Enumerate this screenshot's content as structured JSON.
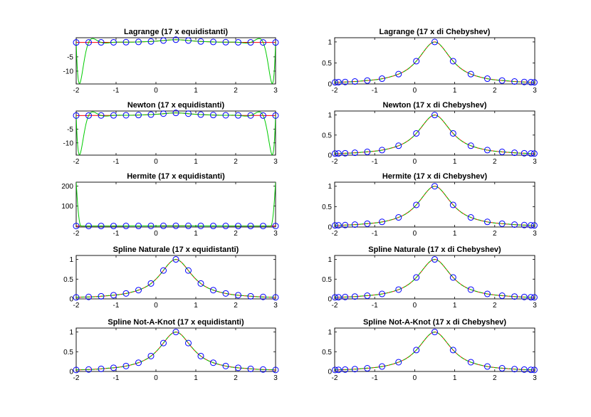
{
  "figure": {
    "background": "#ffffff",
    "colors": {
      "exact": "#ff0000",
      "interpolant": "#00cc00",
      "nodes": "#0000ff",
      "axes": "#000000"
    }
  },
  "chart_data": [
    {
      "type": "line",
      "title": "Lagrange (17 x equidistanti)",
      "xlim": [
        -2,
        3
      ],
      "ylim": [
        -14.5,
        1.7
      ],
      "xticks": [
        -2,
        -1,
        0,
        1,
        2,
        3
      ],
      "xtick_labels": [
        "-2",
        "-1",
        "0",
        "1",
        "2",
        "3"
      ],
      "yticks": [
        -10,
        -5
      ],
      "ytick_labels": [
        "-10",
        "-5"
      ],
      "nodes": "equidistant",
      "interpolant": "runge",
      "grid": false,
      "legend": "none"
    },
    {
      "type": "line",
      "title": "Lagrange (17 x di Chebyshev)",
      "xlim": [
        -2,
        3
      ],
      "ylim": [
        0,
        1.1
      ],
      "xticks": [
        -2,
        -1,
        0,
        1,
        2,
        3
      ],
      "xtick_labels": [
        "-2",
        "-1",
        "0",
        "1",
        "2",
        "3"
      ],
      "yticks": [
        0,
        0.5,
        1
      ],
      "ytick_labels": [
        "0",
        "0.5",
        "1"
      ],
      "nodes": "chebyshev",
      "interpolant": "close",
      "grid": false,
      "legend": "none"
    },
    {
      "type": "line",
      "title": "Newton (17 x equidistanti)",
      "xlim": [
        -2,
        3
      ],
      "ylim": [
        -14.5,
        1.7
      ],
      "xticks": [
        -2,
        -1,
        0,
        1,
        2,
        3
      ],
      "xtick_labels": [
        "-2",
        "-1",
        "0",
        "1",
        "2",
        "3"
      ],
      "yticks": [
        -10,
        -5
      ],
      "ytick_labels": [
        "-10",
        "-5"
      ],
      "nodes": "equidistant",
      "interpolant": "runge",
      "grid": false,
      "legend": "none"
    },
    {
      "type": "line",
      "title": "Newton (17 x di Chebyshev)",
      "xlim": [
        -2,
        3
      ],
      "ylim": [
        0,
        1.1
      ],
      "xticks": [
        -2,
        -1,
        0,
        1,
        2,
        3
      ],
      "xtick_labels": [
        "-2",
        "-1",
        "0",
        "1",
        "2",
        "3"
      ],
      "yticks": [
        0,
        0.5,
        1
      ],
      "ytick_labels": [
        "0",
        "0.5",
        "1"
      ],
      "nodes": "chebyshev",
      "interpolant": "close",
      "grid": false,
      "legend": "none"
    },
    {
      "type": "line",
      "title": "Hermite (17 x equidistanti)",
      "xlim": [
        -2,
        3
      ],
      "ylim": [
        -5,
        220
      ],
      "xticks": [
        -2,
        -1,
        0,
        1,
        2,
        3
      ],
      "xtick_labels": [
        "-2",
        "-1",
        "0",
        "1",
        "2",
        "3"
      ],
      "yticks": [
        100,
        200
      ],
      "ytick_labels": [
        "100",
        "200"
      ],
      "nodes": "equidistant",
      "interpolant": "hermite_spike",
      "grid": false,
      "legend": "none"
    },
    {
      "type": "line",
      "title": "Hermite (17 x di Chebyshev)",
      "xlim": [
        -2,
        3
      ],
      "ylim": [
        0,
        1.1
      ],
      "xticks": [
        -2,
        -1,
        0,
        1,
        2,
        3
      ],
      "xtick_labels": [
        "-2",
        "-1",
        "0",
        "1",
        "2",
        "3"
      ],
      "yticks": [
        0,
        0.5,
        1
      ],
      "ytick_labels": [
        "0",
        "0.5",
        "1"
      ],
      "nodes": "chebyshev",
      "interpolant": "close",
      "grid": false,
      "legend": "none"
    },
    {
      "type": "line",
      "title": "Spline Naturale (17 x equidistanti)",
      "xlim": [
        -2,
        3
      ],
      "ylim": [
        0,
        1.1
      ],
      "xticks": [
        -2,
        -1,
        0,
        1,
        2,
        3
      ],
      "xtick_labels": [
        "-2",
        "-1",
        "0",
        "1",
        "2",
        "3"
      ],
      "yticks": [
        0,
        0.5,
        1
      ],
      "ytick_labels": [
        "0",
        "0.5",
        "1"
      ],
      "nodes": "equidistant",
      "interpolant": "close",
      "grid": false,
      "legend": "none"
    },
    {
      "type": "line",
      "title": "Spline Naturale (17 x di Chebyshev)",
      "xlim": [
        -2,
        3
      ],
      "ylim": [
        0,
        1.1
      ],
      "xticks": [
        -2,
        -1,
        0,
        1,
        2,
        3
      ],
      "xtick_labels": [
        "-2",
        "-1",
        "0",
        "1",
        "2",
        "3"
      ],
      "yticks": [
        0,
        0.5,
        1
      ],
      "ytick_labels": [
        "0",
        "0.5",
        "1"
      ],
      "nodes": "chebyshev",
      "interpolant": "close",
      "grid": false,
      "legend": "none"
    },
    {
      "type": "line",
      "title": "Spline Not-A-Knot (17 x equidistanti)",
      "xlim": [
        -2,
        3
      ],
      "ylim": [
        0,
        1.1
      ],
      "xticks": [
        -2,
        -1,
        0,
        1,
        2,
        3
      ],
      "xtick_labels": [
        "-2",
        "-1",
        "0",
        "1",
        "2",
        "3"
      ],
      "yticks": [
        0,
        0.5,
        1
      ],
      "ytick_labels": [
        "0",
        "0.5",
        "1"
      ],
      "nodes": "equidistant",
      "interpolant": "close",
      "grid": false,
      "legend": "none"
    },
    {
      "type": "line",
      "title": "Spline Not-A-Knot (17 x di Chebyshev)",
      "xlim": [
        -2,
        3
      ],
      "ylim": [
        0,
        1.1
      ],
      "xticks": [
        -2,
        -1,
        0,
        1,
        2,
        3
      ],
      "xtick_labels": [
        "-2",
        "-1",
        "0",
        "1",
        "2",
        "3"
      ],
      "yticks": [
        0,
        0.5,
        1
      ],
      "ytick_labels": [
        "0",
        "0.5",
        "1"
      ],
      "nodes": "chebyshev",
      "interpolant": "close",
      "grid": false,
      "legend": "none"
    }
  ]
}
